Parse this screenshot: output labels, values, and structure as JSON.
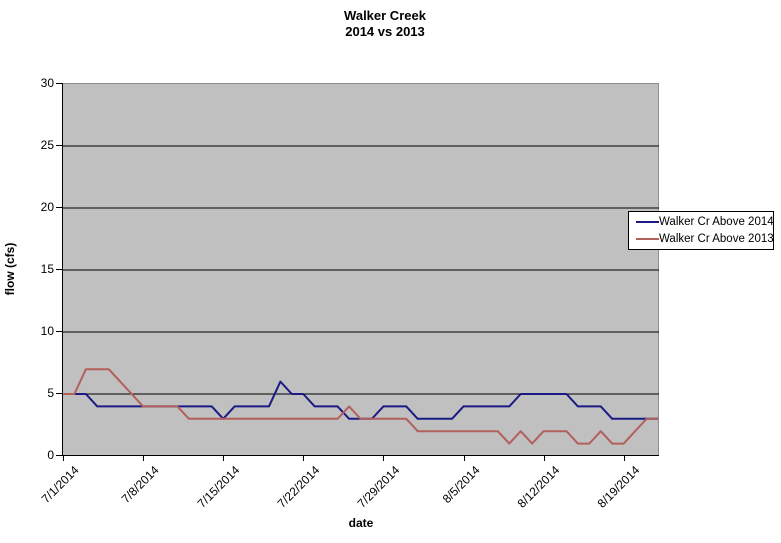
{
  "chart_title": {
    "line1": "Walker Creek",
    "line2": "2014 vs 2013"
  },
  "legend": {
    "entries": [
      {
        "label": "Walker Cr Above 2014",
        "color": "#1a1a85"
      },
      {
        "label": "Walker Cr Above 2013",
        "color": "#b2605c"
      }
    ]
  },
  "chart_data": {
    "type": "line",
    "title": "Walker Creek 2014 vs 2013",
    "xlabel": "date",
    "ylabel": "flow (cfs)",
    "ylim": [
      0,
      30
    ],
    "y_ticks": [
      0,
      5,
      10,
      15,
      20,
      25,
      30
    ],
    "grid_values": [
      5,
      10,
      15,
      20,
      25
    ],
    "grid_color": "#000000",
    "plot_bg": "#c0c0c0",
    "legend_position": "right",
    "x_tick_labels": [
      "7/1/2014",
      "7/8/2014",
      "7/15/2014",
      "7/22/2014",
      "7/29/2014",
      "8/5/2014",
      "8/12/2014",
      "8/19/2014"
    ],
    "x_tick_indices": [
      0,
      7,
      14,
      21,
      28,
      35,
      42,
      49
    ],
    "x": [
      "7/1/2014",
      "7/2/2014",
      "7/3/2014",
      "7/4/2014",
      "7/5/2014",
      "7/6/2014",
      "7/7/2014",
      "7/8/2014",
      "7/9/2014",
      "7/10/2014",
      "7/11/2014",
      "7/12/2014",
      "7/13/2014",
      "7/14/2014",
      "7/15/2014",
      "7/16/2014",
      "7/17/2014",
      "7/18/2014",
      "7/19/2014",
      "7/20/2014",
      "7/21/2014",
      "7/22/2014",
      "7/23/2014",
      "7/24/2014",
      "7/25/2014",
      "7/26/2014",
      "7/27/2014",
      "7/28/2014",
      "7/29/2014",
      "7/30/2014",
      "7/31/2014",
      "8/1/2014",
      "8/2/2014",
      "8/3/2014",
      "8/4/2014",
      "8/5/2014",
      "8/6/2014",
      "8/7/2014",
      "8/8/2014",
      "8/9/2014",
      "8/10/2014",
      "8/11/2014",
      "8/12/2014",
      "8/13/2014",
      "8/14/2014",
      "8/15/2014",
      "8/16/2014",
      "8/17/2014",
      "8/18/2014",
      "8/19/2014",
      "8/20/2014",
      "8/21/2014",
      "8/22/2014"
    ],
    "series": [
      {
        "name": "Walker Cr Above 2014",
        "color": "#1a1a85",
        "values": [
          5,
          5,
          5,
          4,
          4,
          4,
          4,
          4,
          4,
          4,
          4,
          4,
          4,
          4,
          3,
          4,
          4,
          4,
          4,
          6,
          5,
          5,
          4,
          4,
          4,
          3,
          3,
          3,
          4,
          4,
          4,
          3,
          3,
          3,
          3,
          4,
          4,
          4,
          4,
          4,
          5,
          5,
          5,
          5,
          5,
          4,
          4,
          4,
          3,
          3,
          3,
          3,
          3
        ]
      },
      {
        "name": "Walker Cr Above 2013",
        "color": "#b2605c",
        "values": [
          5,
          5,
          7,
          7,
          7,
          6,
          5,
          4,
          4,
          4,
          4,
          3,
          3,
          3,
          3,
          3,
          3,
          3,
          3,
          3,
          3,
          3,
          3,
          3,
          3,
          4,
          3,
          3,
          3,
          3,
          3,
          2,
          2,
          2,
          2,
          2,
          2,
          2,
          2,
          1,
          2,
          1,
          2,
          2,
          2,
          1,
          1,
          2,
          1,
          1,
          2,
          3,
          3
        ]
      }
    ]
  }
}
